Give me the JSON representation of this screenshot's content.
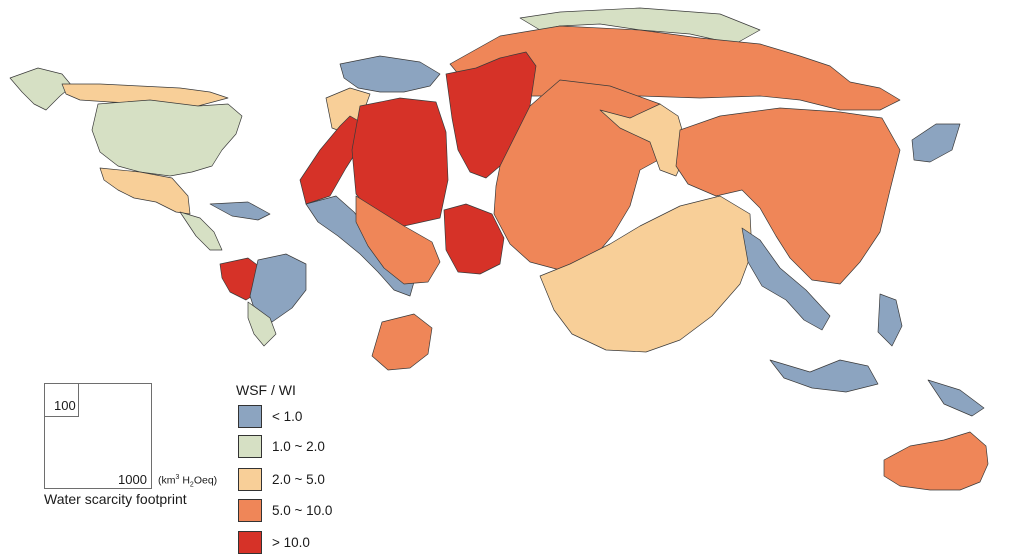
{
  "legend": {
    "title": "WSF / WI",
    "items": [
      {
        "label": "< 1.0",
        "color": "#8ca4c0"
      },
      {
        "label": "1.0 ~ 2.0",
        "color": "#d6e0c4"
      },
      {
        "label": "2.0 ~ 5.0",
        "color": "#f8cf98"
      },
      {
        "label": "5.0 ~ 10.0",
        "color": "#ef8658"
      },
      {
        "label": "> 10.0",
        "color": "#d63228"
      }
    ]
  },
  "scale": {
    "small_value": "100",
    "large_value": "1000",
    "unit_prefix": "(km",
    "unit_sup": "3",
    "unit_mid": " H",
    "unit_sub": "2",
    "unit_suffix": "Oeq)",
    "caption": "Water scarcity footprint"
  },
  "colors": {
    "blue": "#8ca4c0",
    "green": "#d6e0c4",
    "light_orange": "#f8cf98",
    "orange": "#ef8658",
    "red": "#d63228"
  }
}
